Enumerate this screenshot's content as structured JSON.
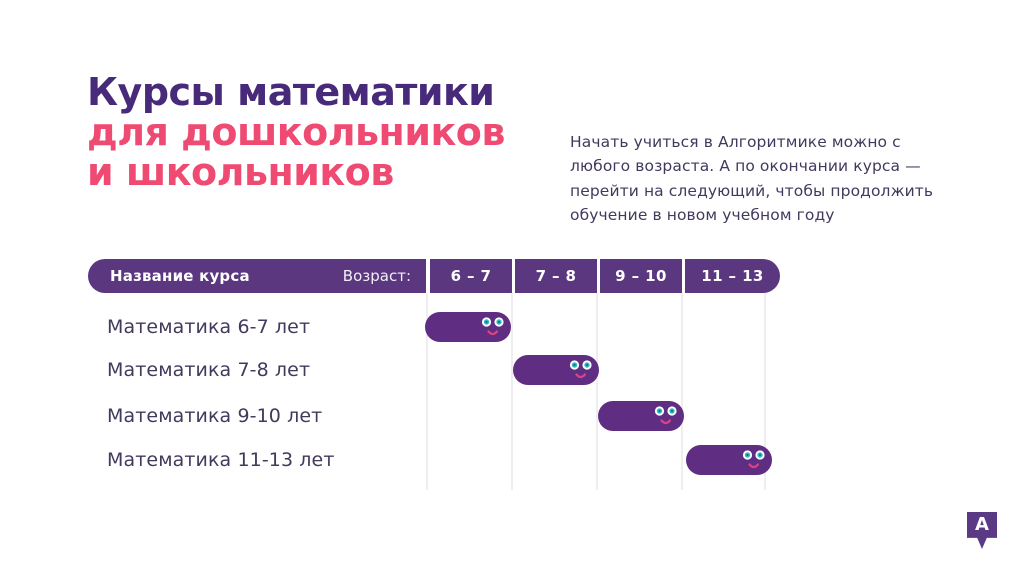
{
  "title": {
    "line1": "Курсы математики",
    "line2": "для дошкольников",
    "line3": "и школьников"
  },
  "description": "Начать учиться в Алгоритмике можно с любого возраста. А по окончании курса — перейти на следующий, чтобы продолжить обучение в новом учебном году",
  "table": {
    "header": {
      "name_label": "Название курса",
      "age_label": "Возраст:",
      "age_columns": [
        "6 – 7",
        "7 – 8",
        "9 – 10",
        "11 – 13"
      ]
    },
    "rows": [
      {
        "label": "Математика 6-7 лет",
        "age_range": "6 – 7",
        "column_index": 0
      },
      {
        "label": "Математика 7-8 лет",
        "age_range": "7 – 8",
        "column_index": 1
      },
      {
        "label": "Математика 9-10 лет",
        "age_range": "9 – 10",
        "column_index": 2
      },
      {
        "label": "Математика 11-13 лет",
        "age_range": "11 – 13",
        "column_index": 3
      }
    ]
  },
  "logo_letter": "A",
  "icons": {
    "pill_face": "smiley-face-icon",
    "logo": "algoritmika-logo"
  },
  "colors": {
    "title_purple": "#472a7a",
    "accent_pink": "#ee4a72",
    "header_purple": "#5b3780",
    "pill_purple": "#5f2d82",
    "text_dark": "#43395c",
    "eye_teal": "#2fb9c7",
    "mouth_pink": "#d94486",
    "logo_purple": "#5b3a85"
  }
}
